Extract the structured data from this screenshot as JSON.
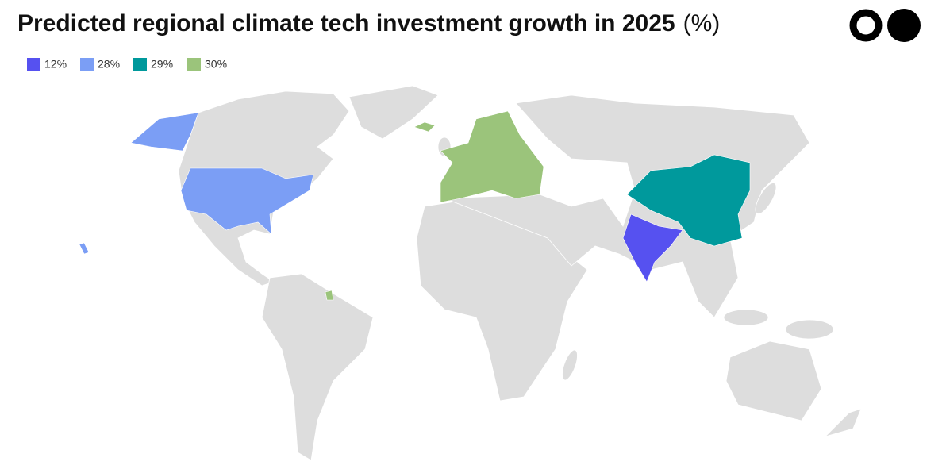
{
  "chart_data": {
    "type": "choropleth",
    "title": "Predicted regional climate tech investment growth in 2025",
    "unit": "(%)",
    "series": [
      {
        "value": 12,
        "label": "12%",
        "color": "#5651f0"
      },
      {
        "value": 28,
        "label": "28%",
        "color": "#7b9ef5"
      },
      {
        "value": 29,
        "label": "29%",
        "color": "#00999c"
      },
      {
        "value": 30,
        "label": "30%",
        "color": "#9bc47b"
      }
    ]
  }
}
